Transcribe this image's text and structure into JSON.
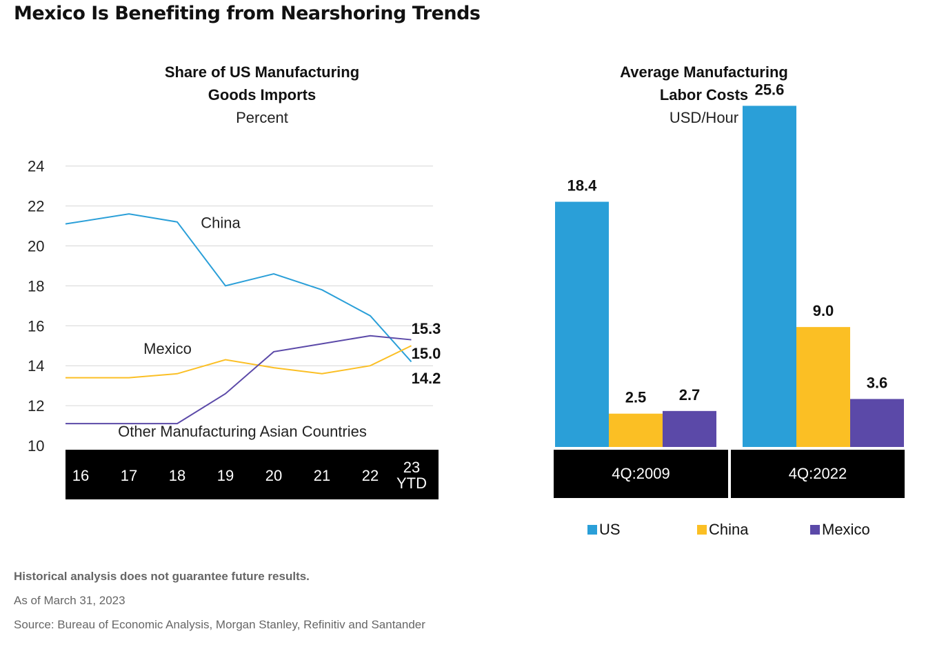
{
  "title": "Mexico Is Benefiting from Nearshoring Trends",
  "colors": {
    "china": "#2A9FD8",
    "mexico": "#FBBF24",
    "other_asia": "#5B49A8",
    "us": "#2A9FD8",
    "axis_band": "#000000"
  },
  "left_chart": {
    "title_line1": "Share of US Manufacturing",
    "title_line2": "Goods Imports",
    "unit": "Percent"
  },
  "right_chart": {
    "title_line1": "Average Manufacturing",
    "title_line2": "Labor Costs",
    "unit": "USD/Hour"
  },
  "legend": [
    {
      "label": "US",
      "color": "#2A9FD8"
    },
    {
      "label": "China",
      "color": "#FBBF24"
    },
    {
      "label": "Mexico",
      "color": "#5B49A8"
    }
  ],
  "notes": {
    "disclaimer": "Historical analysis does not guarantee future results.",
    "as_of": "As of March 31, 2023",
    "source": "Source: Bureau of Economic Analysis, Morgan Stanley, Refinitiv and Santander"
  },
  "chart_data": [
    {
      "type": "line",
      "title": "Share of US Manufacturing Goods Imports",
      "ylabel": "Percent",
      "ylim": [
        10,
        24
      ],
      "yticks": [
        24,
        22,
        20,
        18,
        16,
        14,
        12,
        10
      ],
      "grid": true,
      "x": [
        16,
        16.33,
        16.66,
        17,
        17.33,
        17.66,
        18,
        18.33,
        18.66,
        19,
        19.33,
        19.66,
        20,
        20.33,
        20.66,
        21,
        21.33,
        21.66,
        22,
        22.33,
        22.66,
        23
      ],
      "x_tick_labels": [
        "16",
        "17",
        "18",
        "19",
        "20",
        "21",
        "22",
        "23\nYTD"
      ],
      "series": [
        {
          "name": "China",
          "key": "china",
          "end_label": "14.2",
          "label_pos": [
            18.9,
            20.9
          ],
          "points": [
            [
              16,
              21.1
            ],
            [
              17,
              21.6
            ],
            [
              18,
              21.2
            ],
            [
              19,
              18.0
            ],
            [
              20,
              18.6
            ],
            [
              21,
              17.8
            ],
            [
              22,
              16.5
            ],
            [
              22.85,
              14.2
            ]
          ]
        },
        {
          "name": "Mexico",
          "key": "mexico",
          "end_label": "15.0",
          "label_pos": [
            17.8,
            14.6
          ],
          "points": [
            [
              16,
              13.4
            ],
            [
              17,
              13.4
            ],
            [
              18,
              13.6
            ],
            [
              19,
              14.3
            ],
            [
              20,
              13.9
            ],
            [
              21,
              13.6
            ],
            [
              22,
              14.0
            ],
            [
              22.85,
              15.0
            ]
          ]
        },
        {
          "name": "Other Manufacturing Asian Countries",
          "key": "other_asia",
          "end_label": "15.3",
          "label_pos": [
            19.35,
            10.45
          ],
          "points": [
            [
              16,
              11.1
            ],
            [
              17,
              11.1
            ],
            [
              18,
              11.1
            ],
            [
              19,
              12.6
            ],
            [
              20,
              14.7
            ],
            [
              21,
              15.1
            ],
            [
              22,
              15.5
            ],
            [
              22.85,
              15.3
            ]
          ]
        }
      ]
    },
    {
      "type": "bar",
      "title": "Average Manufacturing Labor Costs",
      "ylabel": "USD/Hour",
      "ylim": [
        0,
        27
      ],
      "categories": [
        "4Q:2009",
        "4Q:2022"
      ],
      "series": [
        {
          "name": "US",
          "key": "us",
          "values": [
            18.4,
            25.6
          ],
          "labels": [
            "18.4",
            "25.6"
          ]
        },
        {
          "name": "China",
          "key": "mexico",
          "values": [
            2.5,
            9.0
          ],
          "labels": [
            "2.5",
            "9.0"
          ]
        },
        {
          "name": "Mexico",
          "key": "other_asia",
          "values": [
            2.7,
            3.6
          ],
          "labels": [
            "2.7",
            "3.6"
          ]
        }
      ]
    }
  ]
}
